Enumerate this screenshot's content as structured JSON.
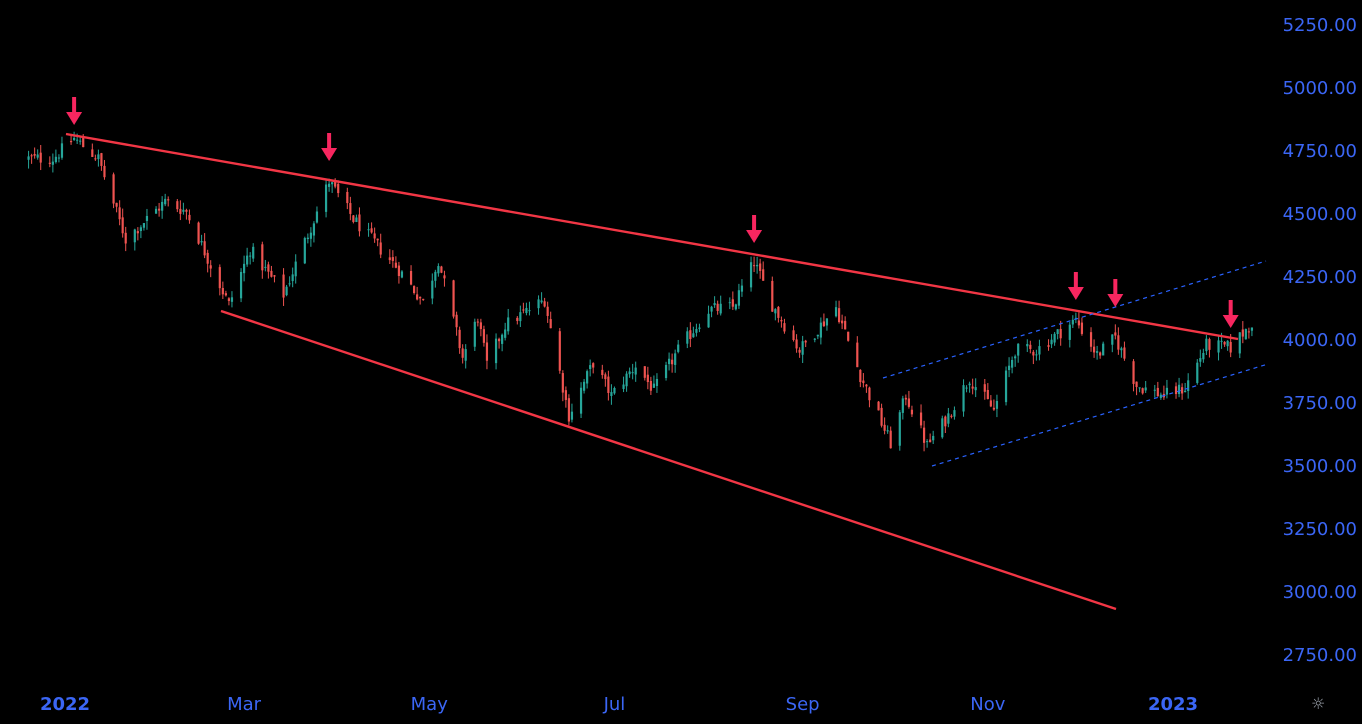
{
  "chart_data": {
    "type": "candlestick",
    "y_axis": {
      "ticks": [
        "5250.00",
        "5000.00",
        "4750.00",
        "4500.00",
        "4250.00",
        "4000.00",
        "3750.00",
        "3500.00",
        "3250.00",
        "3000.00",
        "2750.00"
      ],
      "range": [
        2750,
        5250
      ]
    },
    "x_axis": {
      "ticks": [
        "2022",
        "Mar",
        "May",
        "Jul",
        "Sep",
        "Nov",
        "2023"
      ],
      "bold": [
        true,
        false,
        false,
        false,
        false,
        false,
        true
      ]
    },
    "colors": {
      "background": "#000000",
      "axis_text": "#3b66f5",
      "trendline": "#f23645",
      "channel": "#2962ff",
      "arrow": "#f7265f",
      "up": "#26a69a",
      "down": "#ef5350"
    },
    "close_series": {
      "dates": [
        "2021-12-28",
        "2022-01-04",
        "2022-01-12",
        "2022-01-21",
        "2022-02-03",
        "2022-02-10",
        "2022-02-24",
        "2022-03-03",
        "2022-03-14",
        "2022-03-29",
        "2022-04-06",
        "2022-04-12",
        "2022-04-21",
        "2022-04-29",
        "2022-05-04",
        "2022-05-12",
        "2022-05-17",
        "2022-05-20",
        "2022-05-26",
        "2022-06-08",
        "2022-06-16",
        "2022-06-24",
        "2022-06-30",
        "2022-07-08",
        "2022-07-14",
        "2022-07-22",
        "2022-08-01",
        "2022-08-09",
        "2022-08-16",
        "2022-08-22",
        "2022-08-31",
        "2022-09-12",
        "2022-09-20",
        "2022-09-30",
        "2022-10-05",
        "2022-10-12",
        "2022-10-19",
        "2022-10-26",
        "2022-11-03",
        "2022-11-10",
        "2022-11-17",
        "2022-11-30",
        "2022-12-07",
        "2022-12-13",
        "2022-12-20",
        "2022-12-29",
        "2023-01-05",
        "2023-01-12",
        "2023-01-20",
        "2023-01-27"
      ],
      "values": [
        4720,
        4800,
        4720,
        4400,
        4550,
        4510,
        4140,
        4360,
        4180,
        4630,
        4480,
        4400,
        4280,
        4150,
        4320,
        3930,
        4090,
        3900,
        4060,
        4160,
        3700,
        3910,
        3780,
        3900,
        3800,
        3960,
        4120,
        4130,
        4310,
        4140,
        3960,
        4130,
        3860,
        3590,
        3780,
        3580,
        3700,
        3850,
        3720,
        3960,
        3960,
        4080,
        3940,
        4010,
        3820,
        3780,
        3810,
        3980,
        3970,
        4070
      ]
    },
    "markers": {
      "dates": [
        "2022-01-04",
        "2022-03-29",
        "2022-08-16",
        "2022-11-30",
        "2022-12-13",
        "2023-01-20"
      ]
    }
  }
}
